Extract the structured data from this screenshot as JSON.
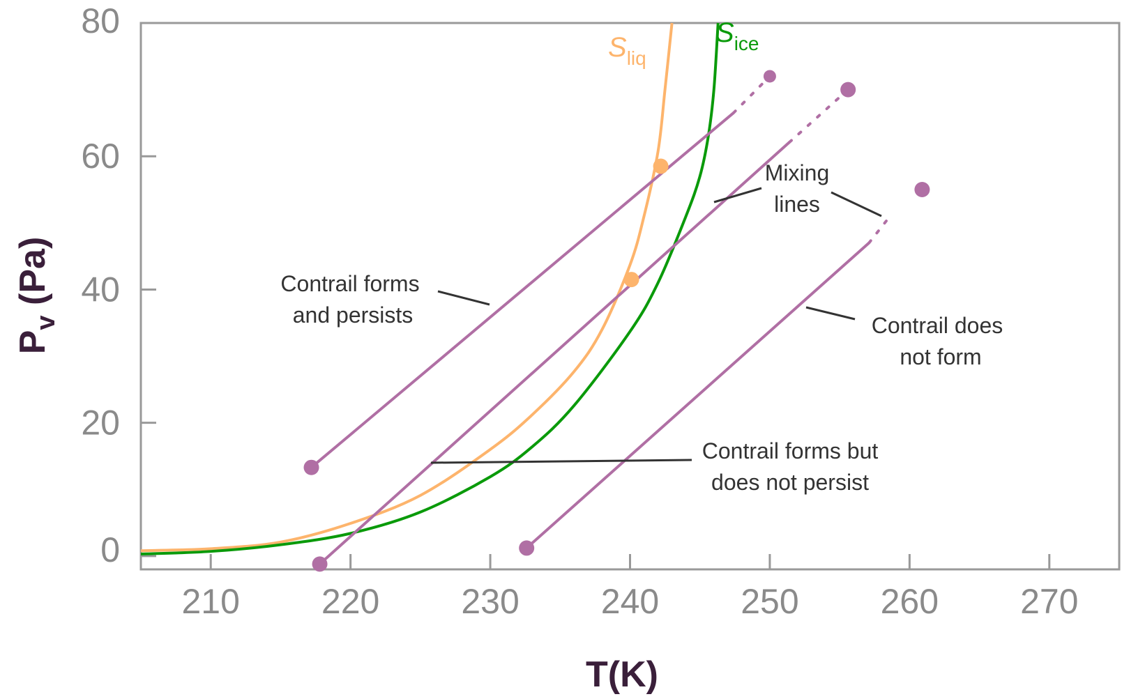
{
  "chart_data": {
    "type": "line",
    "xlabel": "T(K)",
    "ylabel_main": "P",
    "ylabel_sub": "v",
    "ylabel_unit": " (Pa)",
    "xlim": [
      205,
      275
    ],
    "ylim": [
      -2,
      80
    ],
    "xticks": [
      210,
      220,
      230,
      240,
      250,
      260,
      270
    ],
    "yticks": [
      {
        "value": 0,
        "label": "0"
      },
      {
        "value": 20,
        "label": "20"
      },
      {
        "value": 40,
        "label": "40"
      },
      {
        "value": 60,
        "label": "60"
      },
      {
        "value": 80,
        "label": "80"
      }
    ],
    "curves": [
      {
        "id": "sliq",
        "name_main": "S",
        "name_sub": "liq",
        "color": "#fdb46c",
        "points": [
          [
            205,
            0.8
          ],
          [
            210,
            1.1
          ],
          [
            215,
            2.1
          ],
          [
            220,
            4.9
          ],
          [
            225,
            9.1
          ],
          [
            230,
            16.0
          ],
          [
            233,
            21.2
          ],
          [
            236,
            27.7
          ],
          [
            238,
            34.0
          ],
          [
            240,
            43.7
          ],
          [
            241,
            51.0
          ],
          [
            242,
            60.7
          ],
          [
            242.5,
            70.0
          ],
          [
            243.0,
            80.0
          ]
        ]
      },
      {
        "id": "sice",
        "name_main": "S",
        "name_sub": "ice",
        "color": "#0a9a0a",
        "points": [
          [
            205,
            0.3
          ],
          [
            210,
            0.7
          ],
          [
            215,
            1.7
          ],
          [
            220,
            3.4
          ],
          [
            225,
            6.6
          ],
          [
            230,
            11.9
          ],
          [
            233,
            16.4
          ],
          [
            236,
            22.6
          ],
          [
            240,
            33.7
          ],
          [
            242,
            41.0
          ],
          [
            244,
            51.0
          ],
          [
            245,
            57.0
          ],
          [
            245.6,
            63.0
          ],
          [
            246.0,
            70.0
          ],
          [
            246.3,
            80.0
          ]
        ]
      }
    ],
    "mixing_lines": [
      {
        "start": [
          217.2,
          13.3
        ],
        "solid_end": [
          247.4,
          66.5
        ],
        "dotted_end": [
          250.0,
          72.0
        ],
        "end_dot": [
          250.0,
          72.0
        ]
      },
      {
        "start": [
          217.8,
          -1.2
        ],
        "solid_end": [
          251.4,
          62.1
        ],
        "dotted_end": [
          255.6,
          70.0
        ],
        "end_dot": [
          255.6,
          70.0
        ]
      },
      {
        "start": [
          232.6,
          1.2
        ],
        "solid_end": [
          257.1,
          47.0
        ],
        "dotted_end": [
          258.6,
          51.0
        ],
        "end_dot": [
          260.9,
          55.0
        ]
      }
    ],
    "mixing_color": "#b06fa4",
    "intersections": [
      [
        242.2,
        58.5
      ],
      [
        240.1,
        41.5
      ]
    ],
    "annotations": [
      {
        "id": "persists",
        "lines": [
          "Contrail forms",
          "and persists"
        ]
      },
      {
        "id": "not-persist",
        "lines": [
          "Contrail forms but",
          "does not persist"
        ]
      },
      {
        "id": "mixing",
        "lines": [
          "Mixing",
          "lines"
        ]
      },
      {
        "id": "not-form",
        "lines": [
          "Contrail does",
          "not form"
        ]
      }
    ]
  }
}
